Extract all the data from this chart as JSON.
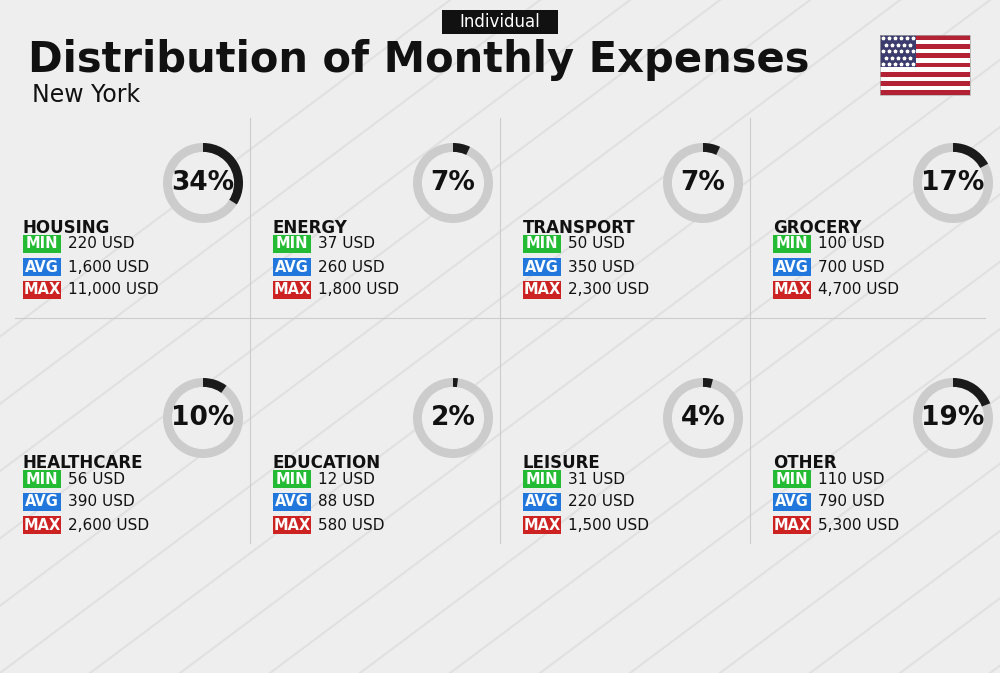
{
  "title": "Distribution of Monthly Expenses",
  "subtitle": "New York",
  "tag": "Individual",
  "bg_color": "#eeeeee",
  "categories": [
    {
      "name": "HOUSING",
      "percent": 34,
      "min_val": "220 USD",
      "avg_val": "1,600 USD",
      "max_val": "11,000 USD",
      "row": 0,
      "col": 0
    },
    {
      "name": "ENERGY",
      "percent": 7,
      "min_val": "37 USD",
      "avg_val": "260 USD",
      "max_val": "1,800 USD",
      "row": 0,
      "col": 1
    },
    {
      "name": "TRANSPORT",
      "percent": 7,
      "min_val": "50 USD",
      "avg_val": "350 USD",
      "max_val": "2,300 USD",
      "row": 0,
      "col": 2
    },
    {
      "name": "GROCERY",
      "percent": 17,
      "min_val": "100 USD",
      "avg_val": "700 USD",
      "max_val": "4,700 USD",
      "row": 0,
      "col": 3
    },
    {
      "name": "HEALTHCARE",
      "percent": 10,
      "min_val": "56 USD",
      "avg_val": "390 USD",
      "max_val": "2,600 USD",
      "row": 1,
      "col": 0
    },
    {
      "name": "EDUCATION",
      "percent": 2,
      "min_val": "12 USD",
      "avg_val": "88 USD",
      "max_val": "580 USD",
      "row": 1,
      "col": 1
    },
    {
      "name": "LEISURE",
      "percent": 4,
      "min_val": "31 USD",
      "avg_val": "220 USD",
      "max_val": "1,500 USD",
      "row": 1,
      "col": 2
    },
    {
      "name": "OTHER",
      "percent": 19,
      "min_val": "110 USD",
      "avg_val": "790 USD",
      "max_val": "5,300 USD",
      "row": 1,
      "col": 3
    }
  ],
  "min_color": "#22bb33",
  "avg_color": "#2277dd",
  "max_color": "#cc2222",
  "arc_color": "#1a1a1a",
  "arc_bg_color": "#cccccc",
  "title_fontsize": 30,
  "subtitle_fontsize": 17,
  "tag_fontsize": 12,
  "cat_fontsize": 12,
  "val_fontsize": 11,
  "pct_fontsize": 19,
  "diag_color": "#d8d8d8",
  "sep_color": "#cccccc"
}
